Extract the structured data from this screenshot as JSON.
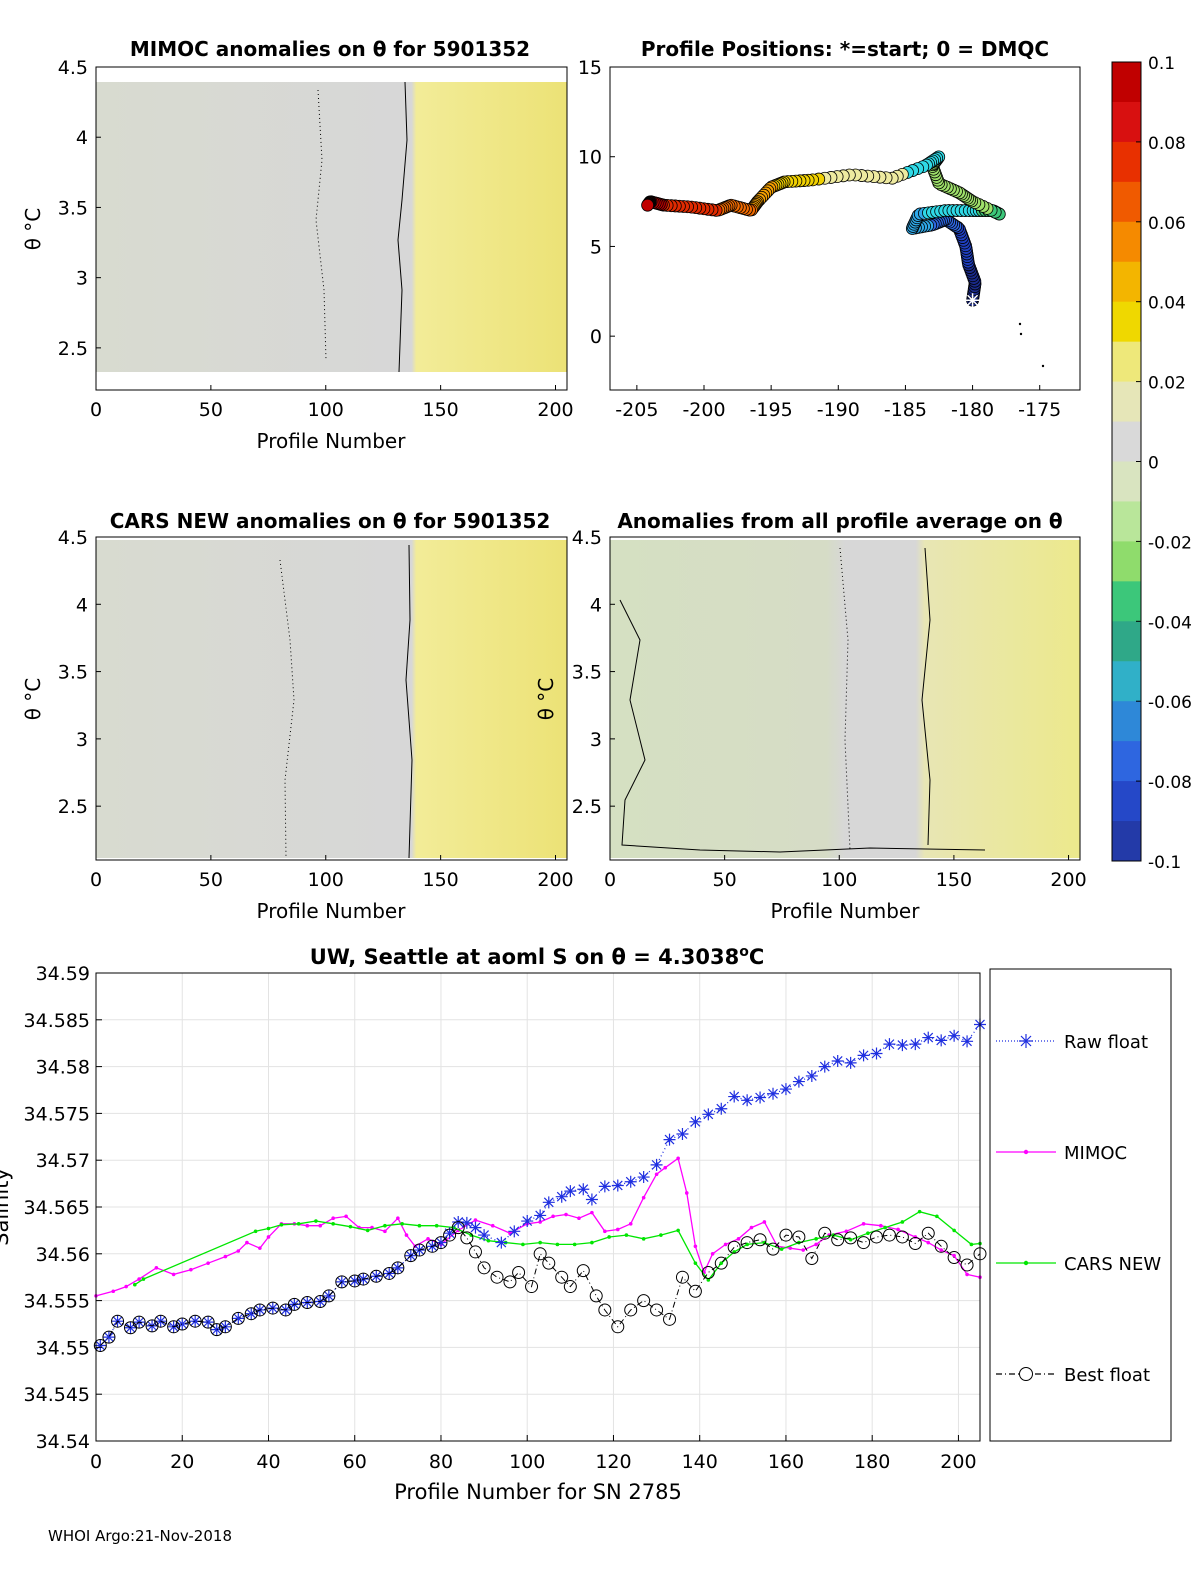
{
  "colors": {
    "raw": "#1f2fe0",
    "mimoc": "#ff00ff",
    "cars": "#00e600",
    "best": "#000000",
    "field_low": "#d8dbd0",
    "field_mid": "#d7d7d7",
    "field_high": "#eee47a",
    "colormap": [
      "#1a2a8a",
      "#1f3fc0",
      "#2e66e0",
      "#2fa8e8",
      "#2fd9e6",
      "#3cc77a",
      "#9ee06a",
      "#d7ebb0",
      "#d9d9d9",
      "#eeeaa0",
      "#f0d000",
      "#f5a000",
      "#f06a00",
      "#e02a00",
      "#c00000"
    ]
  },
  "footer": "WHOI Argo:21-Nov-2018",
  "chart_data": [
    {
      "type": "heatmap",
      "title": "MIMOC anomalies on θ  for 5901352",
      "xlabel": "Profile Number",
      "ylabel": "θ °C",
      "xlim": [
        0,
        205
      ],
      "ylim": [
        2.2,
        4.5
      ],
      "xticks": [
        "0",
        "50",
        "100",
        "150",
        "200"
      ],
      "yticks": [
        "2.5",
        "3",
        "3.5",
        "4",
        "4.5"
      ],
      "field": {
        "transition_profile": 137,
        "low_value": 0.0,
        "high_value": 0.02
      }
    },
    {
      "type": "scatter",
      "title": "Profile Positions: *=start; 0 = DMQC",
      "xlim": [
        -207,
        -172
      ],
      "ylim": [
        -3,
        15
      ],
      "xticks": [
        "-205",
        "-200",
        "-195",
        "-190",
        "-185",
        "-180",
        "-175"
      ],
      "yticks": [
        "0",
        "5",
        "10",
        "15"
      ],
      "start": [
        -180,
        2
      ],
      "path": [
        [
          -180,
          2
        ],
        [
          -179.8,
          3
        ],
        [
          -180.3,
          4
        ],
        [
          -180.5,
          5
        ],
        [
          -181,
          6
        ],
        [
          -182,
          6.5
        ],
        [
          -183,
          6.2
        ],
        [
          -184.5,
          6
        ],
        [
          -184,
          6.8
        ],
        [
          -182,
          7
        ],
        [
          -180,
          7
        ],
        [
          -178.5,
          7
        ],
        [
          -178,
          6.8
        ],
        [
          -180,
          7.5
        ],
        [
          -181,
          8
        ],
        [
          -182.5,
          8.5
        ],
        [
          -183,
          9.5
        ],
        [
          -182.5,
          10
        ],
        [
          -183.5,
          9.5
        ],
        [
          -186,
          8.8
        ],
        [
          -189,
          9
        ],
        [
          -192,
          8.7
        ],
        [
          -194,
          8.6
        ],
        [
          -195,
          8.3
        ],
        [
          -196,
          7.5
        ],
        [
          -196.5,
          7
        ],
        [
          -198,
          7.3
        ],
        [
          -199,
          7
        ],
        [
          -201,
          7.2
        ],
        [
          -203,
          7.3
        ],
        [
          -204,
          7.5
        ],
        [
          -204.2,
          7.3
        ]
      ]
    },
    {
      "type": "heatmap",
      "title": "CARS NEW anomalies on θ for 5901352",
      "xlabel": "Profile Number",
      "ylabel": "θ °C",
      "xlim": [
        0,
        205
      ],
      "ylim": [
        2.1,
        4.5
      ],
      "xticks": [
        "0",
        "50",
        "100",
        "150",
        "200"
      ],
      "yticks": [
        "2.5",
        "3",
        "3.5",
        "4",
        "4.5"
      ],
      "field": {
        "transition_profile": 138,
        "low_value": 0.0,
        "high_value": 0.02
      }
    },
    {
      "type": "heatmap",
      "title": "Anomalies from all profile average on θ",
      "xlabel": "Profile Number",
      "ylabel": "θ °C",
      "xlim": [
        0,
        205
      ],
      "ylim": [
        2.1,
        4.5
      ],
      "xticks": [
        "0",
        "50",
        "100",
        "150",
        "200"
      ],
      "yticks": [
        "2.5",
        "3",
        "3.5",
        "4",
        "4.5"
      ],
      "field": {
        "transition_profile": 137,
        "low_value": -0.01,
        "high_value": 0.02
      }
    },
    {
      "type": "colorbar",
      "range": [
        -0.1,
        0.1
      ],
      "ticks": [
        "0.1",
        "0.08",
        "0.06",
        "0.04",
        "0.02",
        "0",
        "-0.02",
        "-0.04",
        "-0.06",
        "-0.08",
        "-0.1"
      ]
    },
    {
      "type": "line",
      "title": "UW, Seattle at aoml S on θ = 4.3038°C",
      "title_main": "UW, Seattle at aoml S on θ = 4.3038",
      "title_unit": "C",
      "xlabel": "Profile Number for SN 2785",
      "ylabel": "Salinity",
      "xlim": [
        0,
        205
      ],
      "ylim": [
        34.54,
        34.59
      ],
      "xticks": [
        "0",
        "20",
        "40",
        "60",
        "80",
        "100",
        "120",
        "140",
        "160",
        "180",
        "200"
      ],
      "yticks": [
        "34.54",
        "34.545",
        "34.55",
        "34.555",
        "34.56",
        "34.565",
        "34.57",
        "34.575",
        "34.58",
        "34.585",
        "34.59"
      ],
      "series": [
        {
          "name": "Raw float",
          "x": [
            1,
            3,
            5,
            8,
            10,
            13,
            15,
            18,
            20,
            23,
            26,
            28,
            30,
            33,
            36,
            38,
            41,
            44,
            46,
            49,
            52,
            54,
            57,
            60,
            62,
            65,
            68,
            70,
            73,
            75,
            78,
            80,
            82,
            84,
            86,
            88,
            90,
            94,
            97,
            100,
            103,
            105,
            108,
            110,
            113,
            115,
            118,
            121,
            124,
            127,
            130,
            133,
            136,
            139,
            142,
            145,
            148,
            151,
            154,
            157,
            160,
            163,
            166,
            169,
            172,
            175,
            178,
            181,
            184,
            187,
            190,
            193,
            196,
            199,
            202,
            205
          ],
          "y": [
            34.5502,
            34.5511,
            34.5528,
            34.5521,
            34.5527,
            34.5523,
            34.5528,
            34.5522,
            34.5525,
            34.5528,
            34.5527,
            34.5519,
            34.5522,
            34.5531,
            34.5536,
            34.554,
            34.5542,
            34.554,
            34.5546,
            34.5548,
            34.5549,
            34.5555,
            34.557,
            34.5571,
            34.5573,
            34.5576,
            34.5579,
            34.5585,
            34.5598,
            34.5604,
            34.5608,
            34.5612,
            34.5622,
            34.5634,
            34.5633,
            34.5628,
            34.562,
            34.5612,
            34.5624,
            34.5635,
            34.5641,
            34.5655,
            34.5661,
            34.5667,
            34.5669,
            34.5658,
            34.5672,
            34.5673,
            34.5677,
            34.5682,
            34.5695,
            34.5722,
            34.5728,
            34.5741,
            34.5749,
            34.5755,
            34.5768,
            34.5764,
            34.5767,
            34.5771,
            34.5776,
            34.5784,
            34.579,
            34.58,
            34.5806,
            34.5804,
            34.5812,
            34.5814,
            34.5824,
            34.5823,
            34.5824,
            34.5831,
            34.5828,
            34.5833,
            34.5827,
            34.5845
          ]
        },
        {
          "name": "MIMOC",
          "x": [
            0,
            4,
            7,
            10,
            14,
            18,
            22,
            26,
            30,
            33,
            35,
            38,
            40,
            43,
            46,
            49,
            52,
            55,
            58,
            61,
            64,
            67,
            70,
            72,
            74,
            77,
            80,
            84,
            88,
            92,
            96,
            100,
            103,
            106,
            109,
            112,
            115,
            118,
            121,
            124,
            127,
            130,
            132,
            135,
            137,
            139,
            141,
            143,
            146,
            149,
            152,
            155,
            158,
            161,
            164,
            167,
            170,
            174,
            178,
            182,
            186,
            190,
            193,
            196,
            199,
            202,
            205
          ],
          "y": [
            34.5555,
            34.556,
            34.5565,
            34.5573,
            34.5585,
            34.5578,
            34.5583,
            34.559,
            34.5597,
            34.5603,
            34.5612,
            34.5606,
            34.5618,
            34.5632,
            34.5632,
            34.563,
            34.563,
            34.5638,
            34.564,
            34.5628,
            34.5628,
            34.5624,
            34.5638,
            34.562,
            34.5608,
            34.5616,
            34.561,
            34.5625,
            34.5636,
            34.563,
            34.5622,
            34.5632,
            34.5634,
            34.564,
            34.5642,
            34.5638,
            34.5644,
            34.5624,
            34.5626,
            34.5632,
            34.566,
            34.5685,
            34.5692,
            34.5702,
            34.5665,
            34.5608,
            34.558,
            34.56,
            34.561,
            34.5616,
            34.5628,
            34.5634,
            34.5608,
            34.5606,
            34.5604,
            34.561,
            34.562,
            34.5624,
            34.5632,
            34.563,
            34.5626,
            34.5618,
            34.5612,
            34.5604,
            34.5598,
            34.5578,
            34.5575
          ]
        },
        {
          "name": "CARS NEW",
          "x": [
            9,
            11,
            37,
            40,
            43,
            47,
            51,
            55,
            59,
            63,
            67,
            71,
            75,
            79,
            83,
            87,
            91,
            95,
            99,
            103,
            107,
            111,
            115,
            119,
            123,
            127,
            131,
            135,
            139,
            142,
            145,
            148,
            151,
            155,
            159,
            163,
            167,
            171,
            175,
            179,
            183,
            187,
            191,
            195,
            199,
            203,
            205
          ],
          "y": [
            34.5567,
            34.5573,
            34.5624,
            34.5627,
            34.5631,
            34.5632,
            34.5635,
            34.5632,
            34.5629,
            34.5625,
            34.563,
            34.5632,
            34.563,
            34.563,
            34.5628,
            34.562,
            34.5614,
            34.5612,
            34.561,
            34.5612,
            34.561,
            34.561,
            34.5612,
            34.5618,
            34.562,
            34.5616,
            34.562,
            34.5625,
            34.559,
            34.5572,
            34.559,
            34.5602,
            34.561,
            34.5612,
            34.5605,
            34.5612,
            34.5616,
            34.562,
            34.5615,
            34.5622,
            34.5628,
            34.5634,
            34.5645,
            34.564,
            34.5625,
            34.561,
            34.5611
          ]
        },
        {
          "name": "Best float",
          "x": [
            1,
            3,
            5,
            8,
            10,
            13,
            15,
            18,
            20,
            23,
            26,
            28,
            30,
            33,
            36,
            38,
            41,
            44,
            46,
            49,
            52,
            54,
            57,
            60,
            62,
            65,
            68,
            70,
            73,
            75,
            78,
            80,
            82,
            84,
            86,
            88,
            90,
            93,
            96,
            98,
            101,
            103,
            105,
            108,
            110,
            113,
            116,
            118,
            121,
            124,
            127,
            130,
            133,
            136,
            139,
            142,
            145,
            148,
            151,
            154,
            157,
            160,
            163,
            166,
            169,
            172,
            175,
            178,
            181,
            184,
            187,
            190,
            193,
            196,
            199,
            202,
            205
          ],
          "y": [
            34.5502,
            34.5511,
            34.5528,
            34.5521,
            34.5527,
            34.5523,
            34.5528,
            34.5522,
            34.5525,
            34.5528,
            34.5527,
            34.5519,
            34.5522,
            34.5531,
            34.5536,
            34.554,
            34.5542,
            34.554,
            34.5546,
            34.5548,
            34.5549,
            34.5555,
            34.557,
            34.5571,
            34.5573,
            34.5576,
            34.5579,
            34.5585,
            34.5598,
            34.5604,
            34.5608,
            34.5612,
            34.562,
            34.5628,
            34.5617,
            34.5602,
            34.5585,
            34.5575,
            34.557,
            34.558,
            34.5565,
            34.56,
            34.559,
            34.5575,
            34.5565,
            34.5582,
            34.5555,
            34.554,
            34.5522,
            34.554,
            34.555,
            34.554,
            34.553,
            34.5575,
            34.556,
            34.558,
            34.559,
            34.5607,
            34.5612,
            34.5615,
            34.5605,
            34.562,
            34.5618,
            34.5595,
            34.5622,
            34.5615,
            34.5617,
            34.5612,
            34.5618,
            34.562,
            34.5618,
            34.5611,
            34.5622,
            34.5608,
            34.5596,
            34.5588,
            34.56
          ]
        }
      ]
    }
  ]
}
